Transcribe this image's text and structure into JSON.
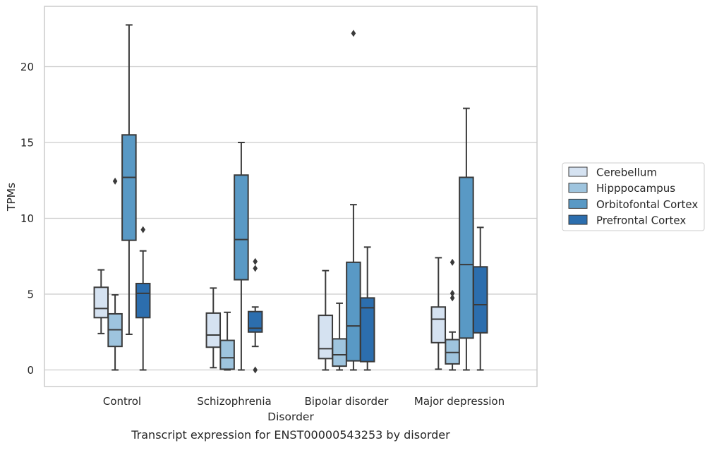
{
  "chart_data": {
    "type": "box",
    "caption": "Transcript expression for ENST00000543253 by disorder",
    "xlabel": "Disorder",
    "ylabel": "TPMs",
    "ylim": [
      -1.1,
      24
    ],
    "yticks": [
      0,
      5,
      10,
      15,
      20
    ],
    "grid": "horizontal",
    "legend_position": "right",
    "categories": [
      "Control",
      "Schizophrenia",
      "Bipolar disorder",
      "Major depression"
    ],
    "series": [
      {
        "name": "Cerebellum",
        "color": "#d5e2f1",
        "boxes": [
          {
            "whisker_low": 2.4,
            "q1": 3.45,
            "median": 4.05,
            "q3": 5.45,
            "whisker_high": 6.6,
            "outliers": []
          },
          {
            "whisker_low": 0.15,
            "q1": 1.5,
            "median": 2.3,
            "q3": 3.75,
            "whisker_high": 5.4,
            "outliers": []
          },
          {
            "whisker_low": 0.0,
            "q1": 0.75,
            "median": 1.4,
            "q3": 3.6,
            "whisker_high": 6.55,
            "outliers": []
          },
          {
            "whisker_low": 0.05,
            "q1": 1.8,
            "median": 3.35,
            "q3": 4.15,
            "whisker_high": 7.4,
            "outliers": []
          }
        ]
      },
      {
        "name": "Hipppocampus",
        "color": "#9ec4de",
        "boxes": [
          {
            "whisker_low": 0.0,
            "q1": 1.55,
            "median": 2.65,
            "q3": 3.7,
            "whisker_high": 4.95,
            "outliers": [
              12.45
            ]
          },
          {
            "whisker_low": 0.0,
            "q1": 0.05,
            "median": 0.8,
            "q3": 1.95,
            "whisker_high": 3.8,
            "outliers": []
          },
          {
            "whisker_low": 0.0,
            "q1": 0.25,
            "median": 1.0,
            "q3": 2.05,
            "whisker_high": 4.4,
            "outliers": []
          },
          {
            "whisker_low": 0.0,
            "q1": 0.4,
            "median": 1.15,
            "q3": 2.0,
            "whisker_high": 2.5,
            "outliers": [
              4.75,
              5.05,
              7.1
            ]
          }
        ]
      },
      {
        "name": "Orbitofontal Cortex",
        "color": "#5999c5",
        "boxes": [
          {
            "whisker_low": 2.35,
            "q1": 8.55,
            "median": 12.7,
            "q3": 15.5,
            "whisker_high": 22.75,
            "outliers": []
          },
          {
            "whisker_low": 0.0,
            "q1": 5.95,
            "median": 8.6,
            "q3": 12.85,
            "whisker_high": 15.0,
            "outliers": []
          },
          {
            "whisker_low": 0.0,
            "q1": 0.6,
            "median": 2.9,
            "q3": 7.1,
            "whisker_high": 10.9,
            "outliers": [
              22.2
            ]
          },
          {
            "whisker_low": 0.0,
            "q1": 2.1,
            "median": 6.95,
            "q3": 12.7,
            "whisker_high": 17.25,
            "outliers": []
          }
        ]
      },
      {
        "name": "Prefrontal Cortex",
        "color": "#2c6eae",
        "boxes": [
          {
            "whisker_low": 0.0,
            "q1": 3.45,
            "median": 5.05,
            "q3": 5.7,
            "whisker_high": 7.85,
            "outliers": [
              9.25
            ]
          },
          {
            "whisker_low": 1.55,
            "q1": 2.5,
            "median": 2.75,
            "q3": 3.85,
            "whisker_high": 4.15,
            "outliers": [
              0.0,
              6.7,
              7.15
            ]
          },
          {
            "whisker_low": 0.0,
            "q1": 0.55,
            "median": 4.1,
            "q3": 4.75,
            "whisker_high": 8.1,
            "outliers": []
          },
          {
            "whisker_low": 0.0,
            "q1": 2.45,
            "median": 4.3,
            "q3": 6.8,
            "whisker_high": 9.4,
            "outliers": []
          }
        ]
      }
    ]
  }
}
